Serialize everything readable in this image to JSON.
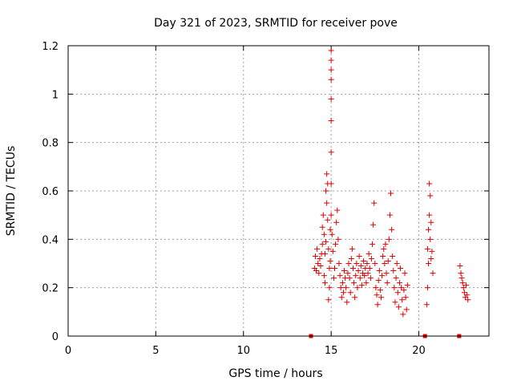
{
  "chart_data": {
    "type": "scatter",
    "title": "Day 321 of 2023, SRMTID for receiver pove",
    "xlabel": "GPS time / hours",
    "ylabel": "SRMTID / TECUs",
    "xlim": [
      0,
      24
    ],
    "ylim": [
      0,
      1.2
    ],
    "x_ticks": [
      0,
      5,
      10,
      15,
      20
    ],
    "x_tick_labels": [
      "0",
      "5",
      "10",
      "15",
      "20"
    ],
    "y_ticks": [
      0,
      0.2,
      0.4,
      0.6,
      0.8,
      1.0,
      1.2
    ],
    "y_tick_labels": [
      "0",
      "0.2",
      "0.4",
      "0.6",
      "0.8",
      "1",
      "1.2"
    ],
    "grid": true,
    "marker": "plus",
    "color": "#e00000",
    "series": [
      {
        "points": [
          [
            14.05,
            0.28
          ],
          [
            14.1,
            0.33
          ],
          [
            14.15,
            0.27
          ],
          [
            14.2,
            0.36
          ],
          [
            14.25,
            0.3
          ],
          [
            14.3,
            0.26
          ],
          [
            14.35,
            0.32
          ],
          [
            14.4,
            0.29
          ],
          [
            14.45,
            0.34
          ],
          [
            14.5,
            0.38
          ],
          [
            14.5,
            0.45
          ],
          [
            14.55,
            0.5
          ],
          [
            14.6,
            0.42
          ],
          [
            14.6,
            0.25
          ],
          [
            14.65,
            0.22
          ],
          [
            14.65,
            0.34
          ],
          [
            14.7,
            0.39
          ],
          [
            14.7,
            0.6
          ],
          [
            14.75,
            0.67
          ],
          [
            14.75,
            0.55
          ],
          [
            14.8,
            0.63
          ],
          [
            14.8,
            0.48
          ],
          [
            14.85,
            0.15
          ],
          [
            14.85,
            0.36
          ],
          [
            14.9,
            0.2
          ],
          [
            14.9,
            0.28
          ],
          [
            14.95,
            0.31
          ],
          [
            14.95,
            0.44
          ],
          [
            15.0,
            0.5
          ],
          [
            15.0,
            0.63
          ],
          [
            15.0,
            0.76
          ],
          [
            15.0,
            0.89
          ],
          [
            15.0,
            0.98
          ],
          [
            15.0,
            1.06
          ],
          [
            15.0,
            1.1
          ],
          [
            15.0,
            1.14
          ],
          [
            15.0,
            1.18
          ],
          [
            15.05,
            0.42
          ],
          [
            15.1,
            0.35
          ],
          [
            15.15,
            0.24
          ],
          [
            15.2,
            0.28
          ],
          [
            15.25,
            0.38
          ],
          [
            15.3,
            0.47
          ],
          [
            15.35,
            0.52
          ],
          [
            15.4,
            0.4
          ],
          [
            15.45,
            0.3
          ],
          [
            15.5,
            0.25
          ],
          [
            15.55,
            0.2
          ],
          [
            15.6,
            0.16
          ],
          [
            15.65,
            0.22
          ],
          [
            15.7,
            0.18
          ],
          [
            15.75,
            0.27
          ],
          [
            15.8,
            0.24
          ],
          [
            15.85,
            0.2
          ],
          [
            15.9,
            0.14
          ],
          [
            15.95,
            0.26
          ],
          [
            16.0,
            0.3
          ],
          [
            16.05,
            0.24
          ],
          [
            16.1,
            0.18
          ],
          [
            16.15,
            0.32
          ],
          [
            16.2,
            0.36
          ],
          [
            16.25,
            0.28
          ],
          [
            16.3,
            0.22
          ],
          [
            16.35,
            0.16
          ],
          [
            16.4,
            0.25
          ],
          [
            16.45,
            0.3
          ],
          [
            16.5,
            0.2
          ],
          [
            16.55,
            0.27
          ],
          [
            16.6,
            0.33
          ],
          [
            16.65,
            0.24
          ],
          [
            16.7,
            0.29
          ],
          [
            16.75,
            0.21
          ],
          [
            16.8,
            0.26
          ],
          [
            16.85,
            0.31
          ],
          [
            16.9,
            0.25
          ],
          [
            16.95,
            0.28
          ],
          [
            17.0,
            0.22
          ],
          [
            17.05,
            0.3
          ],
          [
            17.1,
            0.26
          ],
          [
            17.15,
            0.34
          ],
          [
            17.2,
            0.28
          ],
          [
            17.25,
            0.24
          ],
          [
            17.3,
            0.32
          ],
          [
            17.35,
            0.38
          ],
          [
            17.4,
            0.46
          ],
          [
            17.45,
            0.55
          ],
          [
            17.5,
            0.3
          ],
          [
            17.55,
            0.2
          ],
          [
            17.6,
            0.17
          ],
          [
            17.65,
            0.13
          ],
          [
            17.7,
            0.23
          ],
          [
            17.75,
            0.27
          ],
          [
            17.8,
            0.19
          ],
          [
            17.85,
            0.16
          ],
          [
            17.9,
            0.25
          ],
          [
            17.95,
            0.33
          ],
          [
            18.0,
            0.36
          ],
          [
            18.05,
            0.3
          ],
          [
            18.1,
            0.38
          ],
          [
            18.15,
            0.26
          ],
          [
            18.2,
            0.22
          ],
          [
            18.25,
            0.31
          ],
          [
            18.3,
            0.4
          ],
          [
            18.35,
            0.5
          ],
          [
            18.4,
            0.59
          ],
          [
            18.45,
            0.44
          ],
          [
            18.5,
            0.33
          ],
          [
            18.55,
            0.27
          ],
          [
            18.6,
            0.2
          ],
          [
            18.65,
            0.14
          ],
          [
            18.7,
            0.24
          ],
          [
            18.75,
            0.3
          ],
          [
            18.8,
            0.18
          ],
          [
            18.85,
            0.12
          ],
          [
            18.9,
            0.22
          ],
          [
            18.95,
            0.28
          ],
          [
            19.0,
            0.2
          ],
          [
            19.05,
            0.15
          ],
          [
            19.1,
            0.09
          ],
          [
            19.15,
            0.19
          ],
          [
            19.2,
            0.26
          ],
          [
            19.25,
            0.16
          ],
          [
            19.3,
            0.11
          ],
          [
            19.35,
            0.21
          ],
          [
            20.45,
            0.13
          ],
          [
            20.5,
            0.2
          ],
          [
            20.5,
            0.36
          ],
          [
            20.55,
            0.44
          ],
          [
            20.55,
            0.3
          ],
          [
            20.6,
            0.5
          ],
          [
            20.6,
            0.63
          ],
          [
            20.65,
            0.58
          ],
          [
            20.65,
            0.4
          ],
          [
            20.7,
            0.47
          ],
          [
            20.7,
            0.32
          ],
          [
            20.75,
            0.35
          ],
          [
            20.8,
            0.26
          ],
          [
            22.35,
            0.29
          ],
          [
            22.4,
            0.26
          ],
          [
            22.45,
            0.24
          ],
          [
            22.5,
            0.22
          ],
          [
            22.55,
            0.2
          ],
          [
            22.6,
            0.18
          ],
          [
            22.65,
            0.16
          ],
          [
            22.7,
            0.21
          ],
          [
            22.75,
            0.17
          ],
          [
            22.8,
            0.15
          ]
        ]
      }
    ],
    "baseline_markers": [
      13.85,
      20.35,
      22.3
    ]
  }
}
